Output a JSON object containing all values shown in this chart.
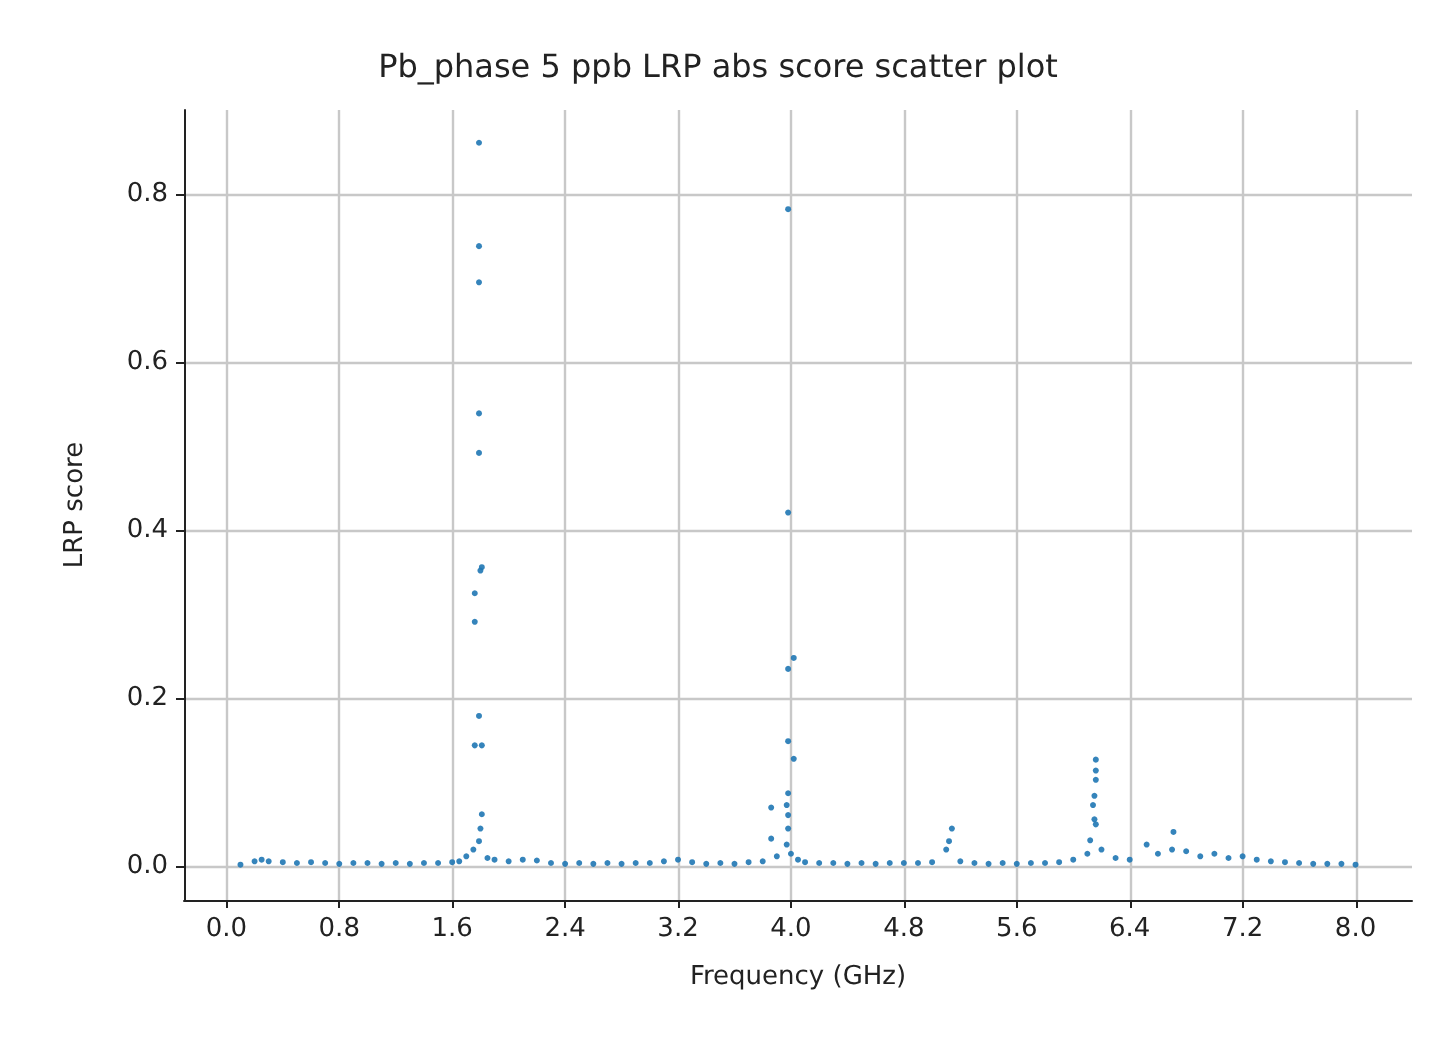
{
  "chart_data": {
    "type": "scatter",
    "title": "Pb_phase 5 ppb LRP abs score scatter plot",
    "xlabel": "Frequency (GHz)",
    "ylabel": "LRP score",
    "xlim": [
      -0.3,
      8.4
    ],
    "ylim": [
      -0.04,
      0.9
    ],
    "xticks": [
      {
        "value": 0,
        "label": "0.0"
      },
      {
        "value": 0.8,
        "label": "0.8"
      },
      {
        "value": 1.6,
        "label": "1.6"
      },
      {
        "value": 2.4,
        "label": "2.4"
      },
      {
        "value": 3.2,
        "label": "3.2"
      },
      {
        "value": 4,
        "label": "4.0"
      },
      {
        "value": 4.8,
        "label": "4.8"
      },
      {
        "value": 5.6,
        "label": "5.6"
      },
      {
        "value": 6.4,
        "label": "6.4"
      },
      {
        "value": 7.2,
        "label": "7.2"
      },
      {
        "value": 8,
        "label": "8.0"
      }
    ],
    "yticks": [
      {
        "value": 0,
        "label": "0.0"
      },
      {
        "value": 0.2,
        "label": "0.2"
      },
      {
        "value": 0.4,
        "label": "0.4"
      },
      {
        "value": 0.6,
        "label": "0.6"
      },
      {
        "value": 0.8,
        "label": "0.8"
      }
    ],
    "grid": true,
    "marker": "circle",
    "series": [
      {
        "color": "#1f77b4",
        "x": [
          0.1,
          0.2,
          0.25,
          0.3,
          0.4,
          0.5,
          0.6,
          0.7,
          0.8,
          0.9,
          1.0,
          1.1,
          1.2,
          1.3,
          1.4,
          1.5,
          1.6,
          1.65,
          1.7,
          1.75,
          1.79,
          1.79,
          1.79,
          1.79,
          1.79,
          1.81,
          1.8,
          1.76,
          1.76,
          1.79,
          1.76,
          1.81,
          1.81,
          1.8,
          1.79,
          1.85,
          1.9,
          2.0,
          2.1,
          2.2,
          2.3,
          2.4,
          2.5,
          2.6,
          2.7,
          2.8,
          2.9,
          3.0,
          3.1,
          3.2,
          3.3,
          3.4,
          3.5,
          3.6,
          3.7,
          3.8,
          3.86,
          3.86,
          3.9,
          3.97,
          3.98,
          3.98,
          4.02,
          3.98,
          3.98,
          4.02,
          3.98,
          3.97,
          3.98,
          3.98,
          4.0,
          4.05,
          4.1,
          4.2,
          4.3,
          4.4,
          4.5,
          4.6,
          4.7,
          4.8,
          4.9,
          5.0,
          5.1,
          5.14,
          5.12,
          5.2,
          5.3,
          5.4,
          5.5,
          5.6,
          5.7,
          5.8,
          5.9,
          6.0,
          6.1,
          6.16,
          6.16,
          6.16,
          6.15,
          6.14,
          6.15,
          6.16,
          6.12,
          6.2,
          6.3,
          6.4,
          6.52,
          6.6,
          6.71,
          6.7,
          6.8,
          6.9,
          7.0,
          7.1,
          7.2,
          7.3,
          7.4,
          7.5,
          7.6,
          7.7,
          7.8,
          7.9,
          8.0
        ],
        "values": [
          0.002,
          0.006,
          0.008,
          0.006,
          0.005,
          0.004,
          0.005,
          0.004,
          0.003,
          0.004,
          0.004,
          0.003,
          0.004,
          0.003,
          0.004,
          0.004,
          0.005,
          0.006,
          0.012,
          0.02,
          0.861,
          0.738,
          0.695,
          0.539,
          0.492,
          0.356,
          0.352,
          0.325,
          0.291,
          0.179,
          0.144,
          0.144,
          0.062,
          0.045,
          0.03,
          0.01,
          0.008,
          0.006,
          0.008,
          0.007,
          0.004,
          0.003,
          0.004,
          0.003,
          0.004,
          0.003,
          0.004,
          0.004,
          0.006,
          0.008,
          0.005,
          0.003,
          0.004,
          0.003,
          0.005,
          0.006,
          0.07,
          0.033,
          0.012,
          0.073,
          0.782,
          0.421,
          0.248,
          0.235,
          0.149,
          0.128,
          0.087,
          0.026,
          0.061,
          0.045,
          0.015,
          0.008,
          0.005,
          0.004,
          0.004,
          0.003,
          0.004,
          0.003,
          0.004,
          0.004,
          0.004,
          0.005,
          0.02,
          0.045,
          0.03,
          0.006,
          0.004,
          0.003,
          0.004,
          0.003,
          0.004,
          0.004,
          0.005,
          0.008,
          0.015,
          0.127,
          0.114,
          0.103,
          0.084,
          0.073,
          0.056,
          0.05,
          0.031,
          0.02,
          0.01,
          0.008,
          0.026,
          0.015,
          0.041,
          0.02,
          0.018,
          0.012,
          0.015,
          0.01,
          0.012,
          0.008,
          0.006,
          0.005,
          0.004,
          0.003,
          0.003,
          0.003,
          0.002
        ]
      }
    ]
  }
}
